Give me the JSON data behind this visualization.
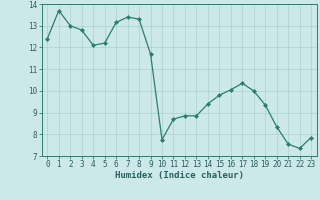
{
  "x": [
    0,
    1,
    2,
    3,
    4,
    5,
    6,
    7,
    8,
    9,
    10,
    11,
    12,
    13,
    14,
    15,
    16,
    17,
    18,
    19,
    20,
    21,
    22,
    23
  ],
  "y": [
    12.4,
    13.7,
    13.0,
    12.8,
    12.1,
    12.2,
    13.15,
    13.4,
    13.3,
    11.7,
    7.75,
    8.7,
    8.85,
    8.85,
    9.4,
    9.8,
    10.05,
    10.35,
    10.0,
    9.35,
    8.35,
    7.55,
    7.35,
    7.85
  ],
  "line_color": "#2a7f6f",
  "marker": "D",
  "marker_size": 2.0,
  "bg_color": "#cce8e8",
  "grid_color": "#aad0d0",
  "xlabel": "Humidex (Indice chaleur)",
  "xlim": [
    -0.5,
    23.5
  ],
  "ylim": [
    7,
    14
  ],
  "yticks": [
    7,
    8,
    9,
    10,
    11,
    12,
    13,
    14
  ],
  "xticks": [
    0,
    1,
    2,
    3,
    4,
    5,
    6,
    7,
    8,
    9,
    10,
    11,
    12,
    13,
    14,
    15,
    16,
    17,
    18,
    19,
    20,
    21,
    22,
    23
  ],
  "tick_fontsize": 5.5,
  "label_fontsize": 6.5,
  "tick_color": "#2a6060",
  "spine_color": "#2a7f6f"
}
